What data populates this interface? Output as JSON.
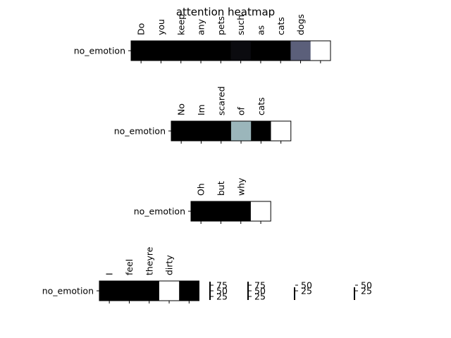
{
  "figure_title": "attention heatmap",
  "chart_data": [
    {
      "type": "heatmap",
      "row_label": "no_emotion",
      "tokens": [
        "Do",
        "you",
        "keep",
        "any",
        "pets",
        "such",
        "as",
        "cats",
        "dogs",
        ""
      ],
      "values": [
        0.0,
        0.0,
        0.0,
        0.0,
        0.0,
        0.05,
        0.0,
        0.0,
        0.42,
        1.0
      ]
    },
    {
      "type": "heatmap",
      "row_label": "no_emotion",
      "tokens": [
        "No",
        "Im",
        "scared",
        "of",
        "cats",
        ""
      ],
      "values": [
        0.0,
        0.0,
        0.0,
        0.7,
        0.0,
        1.0
      ]
    },
    {
      "type": "heatmap",
      "row_label": "no_emotion",
      "tokens": [
        "Oh",
        "but",
        "why",
        ""
      ],
      "values": [
        0.0,
        0.0,
        0.0,
        1.0
      ]
    },
    {
      "type": "heatmap",
      "row_label": "no_emotion",
      "tokens": [
        "I",
        "feel",
        "theyre",
        "dirty",
        ""
      ],
      "values": [
        0.0,
        0.0,
        0.0,
        1.0,
        0.0
      ]
    }
  ],
  "colorbars": [
    {
      "ticks": [
        "75",
        "50",
        "25"
      ]
    },
    {
      "ticks": [
        "75",
        "50",
        "25"
      ]
    },
    {
      "ticks": [
        "50",
        "25"
      ]
    },
    {
      "ticks": [
        "50",
        "25"
      ]
    }
  ]
}
